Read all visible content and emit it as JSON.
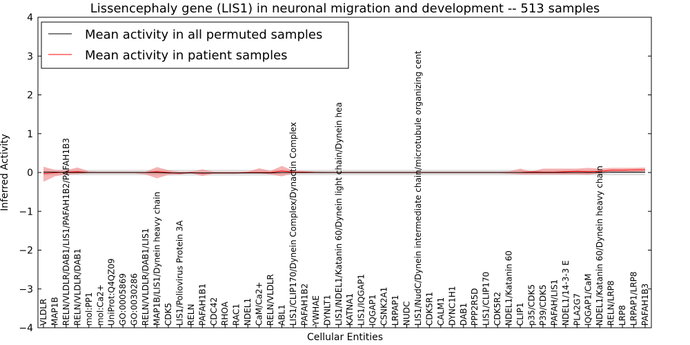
{
  "chart_data": {
    "type": "line",
    "title": "Lissencephaly gene (LIS1) in neuronal migration and development -- 513 samples",
    "xlabel": "Cellular Entities",
    "ylabel": "Inferred Activity",
    "ylim": [
      -4,
      4
    ],
    "yticks": [
      "4",
      "3",
      "2",
      "1",
      "0",
      "−1",
      "−2",
      "−3",
      "−4"
    ],
    "grid": false,
    "legend_position": "upper-left",
    "colors": {
      "permuted": "#000000",
      "patient": "#ff0000",
      "patient_band": "#f08080",
      "permuted_band": "#cccccc"
    },
    "categories": [
      "VLDLR",
      "MAP1B",
      "RELN/VLDLR/DAB1/LIS1/PAFAH1B2/PAFAH1B3",
      "RELN/VLDLR/DAB1",
      "mol:PP1",
      "mol:Ca2+",
      "UniProt:Q4QZ09",
      "GO:0005869",
      "GO:0030286",
      "RELN/VLDLR/DAB1/LIS1",
      "MAP1B/LIS1/Dynein heavy chain",
      "CDK5",
      "LIS1/Poliovirus Protein 3A",
      "RELN",
      "PAFAH1B1",
      "CDC42",
      "RHOA",
      "RAC1",
      "NDEL1",
      "CaM/Ca2+",
      "RELN/VLDLR",
      "ABL1",
      "LIS1/CLIP170/Dynein Complex/Dynactin Complex",
      "PAFAH1B2",
      "YWHAE",
      "DYNLT1",
      "LIS1/NDEL1/Katanin 60/Dynein light chain/Dynein hea",
      "KATNA1",
      "LIS1/IQGAP1",
      "IQGAP1",
      "CSNK2A1",
      "LRPAP1",
      "NUDC",
      "LIS1/NudC/Dynein intermediate chain/microtubule organizing cent",
      "CDK5R1",
      "CALM1",
      "DYNC1H1",
      "DAB1",
      "PPP2R5D",
      "LIS1/CLIP170",
      "CDK5R2",
      "NDEL1/Katanin 60",
      "CLIP1",
      "p35/CDK5",
      "P39/CDK5",
      "PAFAH/LIS1",
      "NDEL1/14-3-3 E",
      "PLA2G7",
      "IQGAP1/CaM",
      "NDEL1/Katanin 60/Dynein heavy chain",
      "RELN/LRP8",
      "LRP8",
      "LRPAP1/LRP8",
      "PAFAH1B3"
    ],
    "series": [
      {
        "name": "Mean activity in all permuted samples",
        "color": "#000000",
        "values": [
          0.01,
          0.01,
          0.0,
          0.0,
          0.0,
          0.0,
          0.0,
          0.0,
          0.0,
          0.0,
          0.0,
          -0.01,
          -0.01,
          -0.01,
          -0.01,
          -0.01,
          -0.01,
          -0.01,
          -0.01,
          -0.01,
          -0.01,
          0.0,
          0.0,
          0.0,
          0.0,
          0.0,
          0.0,
          0.0,
          0.0,
          0.0,
          0.0,
          0.0,
          0.0,
          0.0,
          0.0,
          0.0,
          0.0,
          0.0,
          0.0,
          0.0,
          0.0,
          0.0,
          0.0,
          0.0,
          0.0,
          0.0,
          0.0,
          0.0,
          0.0,
          0.0,
          0.01,
          0.01,
          0.01,
          0.01
        ],
        "band_low": [
          -0.07,
          -0.07,
          -0.07,
          -0.07,
          -0.07,
          -0.07,
          -0.07,
          -0.07,
          -0.07,
          -0.07,
          -0.07,
          -0.08,
          -0.08,
          -0.08,
          -0.08,
          -0.08,
          -0.08,
          -0.08,
          -0.08,
          -0.08,
          -0.08,
          -0.07,
          -0.07,
          -0.07,
          -0.07,
          -0.07,
          -0.07,
          -0.07,
          -0.07,
          -0.07,
          -0.07,
          -0.07,
          -0.07,
          -0.07,
          -0.07,
          -0.07,
          -0.07,
          -0.07,
          -0.07,
          -0.07,
          -0.07,
          -0.07,
          -0.07,
          -0.07,
          -0.07,
          -0.07,
          -0.07,
          -0.07,
          -0.07,
          -0.07,
          -0.07,
          -0.07,
          -0.07,
          -0.07
        ],
        "band_high": [
          0.07,
          0.07,
          0.07,
          0.07,
          0.07,
          0.07,
          0.07,
          0.07,
          0.07,
          0.07,
          0.07,
          0.07,
          0.07,
          0.07,
          0.07,
          0.07,
          0.07,
          0.07,
          0.07,
          0.07,
          0.07,
          0.07,
          0.07,
          0.07,
          0.07,
          0.07,
          0.07,
          0.07,
          0.07,
          0.07,
          0.07,
          0.07,
          0.07,
          0.07,
          0.07,
          0.07,
          0.07,
          0.07,
          0.07,
          0.07,
          0.07,
          0.07,
          0.07,
          0.07,
          0.07,
          0.07,
          0.07,
          0.07,
          0.07,
          0.07,
          0.07,
          0.07,
          0.07,
          0.07
        ]
      },
      {
        "name": "Mean activity in patient samples",
        "color": "#ff0000",
        "values": [
          -0.03,
          -0.01,
          0.01,
          0.02,
          0.0,
          0.0,
          0.0,
          0.0,
          0.0,
          0.0,
          0.02,
          0.0,
          -0.02,
          0.0,
          -0.02,
          -0.01,
          -0.01,
          -0.01,
          0.0,
          0.0,
          0.0,
          0.04,
          0.01,
          0.01,
          0.0,
          0.0,
          0.0,
          0.0,
          0.0,
          0.0,
          0.0,
          0.0,
          0.0,
          0.0,
          0.0,
          0.0,
          0.0,
          0.0,
          0.0,
          0.0,
          0.0,
          0.0,
          0.0,
          0.02,
          0.01,
          0.01,
          0.02,
          0.03,
          0.02,
          0.03,
          0.06,
          0.06,
          0.07,
          0.07
        ],
        "band_low": [
          -0.24,
          -0.1,
          -0.05,
          -0.04,
          -0.02,
          -0.02,
          -0.02,
          -0.02,
          -0.02,
          -0.05,
          -0.15,
          -0.06,
          -0.05,
          -0.02,
          -0.09,
          -0.03,
          -0.03,
          -0.03,
          -0.02,
          -0.02,
          -0.05,
          -0.1,
          -0.02,
          -0.02,
          -0.02,
          -0.02,
          -0.02,
          -0.02,
          -0.02,
          -0.02,
          -0.02,
          -0.02,
          -0.02,
          -0.02,
          -0.02,
          -0.02,
          -0.02,
          -0.02,
          -0.02,
          -0.02,
          -0.02,
          -0.03,
          -0.05,
          -0.05,
          -0.05,
          -0.05,
          -0.05,
          -0.05,
          -0.06,
          -0.02,
          0.02,
          0.02,
          0.02,
          0.03
        ],
        "band_high": [
          0.15,
          0.07,
          0.06,
          0.13,
          0.03,
          0.02,
          0.02,
          0.02,
          0.02,
          0.02,
          0.14,
          0.06,
          0.02,
          0.02,
          0.08,
          0.02,
          0.02,
          0.02,
          0.02,
          0.11,
          0.04,
          0.17,
          0.05,
          0.04,
          0.03,
          0.02,
          0.02,
          0.02,
          0.02,
          0.02,
          0.02,
          0.02,
          0.02,
          0.02,
          0.02,
          0.02,
          0.02,
          0.02,
          0.02,
          0.02,
          0.02,
          0.03,
          0.1,
          0.02,
          0.1,
          0.1,
          0.1,
          0.1,
          0.12,
          0.1,
          0.12,
          0.12,
          0.12,
          0.13
        ]
      }
    ]
  }
}
